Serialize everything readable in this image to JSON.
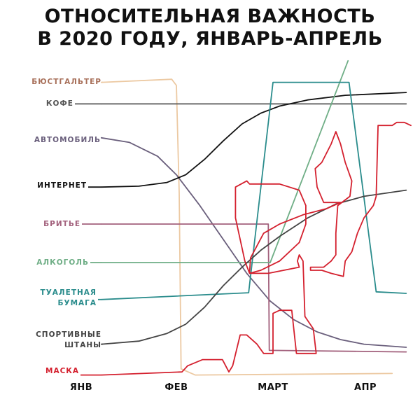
{
  "chart_data": {
    "type": "line",
    "title": "ОТНОСИТЕЛЬНАЯ ВАЖНОСТЬ В 2020 ГОДУ, ЯНВАРЬ-АПРЕЛЬ",
    "title_lines": [
      "ОТНОСИТЕЛЬНАЯ ВАЖНОСТЬ",
      "В 2020 ГОДУ, ЯНВАРЬ-АПРЕЛЬ"
    ],
    "xlabel": "",
    "ylabel": "",
    "x_ticks": [
      {
        "value": 0,
        "label": "ЯНВ"
      },
      {
        "value": 1,
        "label": "ФЕВ"
      },
      {
        "value": 2,
        "label": "МАРТ"
      },
      {
        "value": 3,
        "label": "АПР"
      }
    ],
    "xlim": [
      0,
      3.5
    ],
    "ylim": [
      0,
      103
    ],
    "grid": false,
    "legend": "left-labels",
    "series": [
      {
        "name": "БЮСТГАЛЬТЕР",
        "color": "#ecc9a2",
        "label_color": "#a8705a",
        "points": [
          [
            0.2,
            96
          ],
          [
            0.95,
            97
          ],
          [
            1.0,
            95
          ],
          [
            1.03,
            60
          ],
          [
            1.05,
            3
          ],
          [
            1.2,
            1
          ],
          [
            3.3,
            1.5
          ]
        ]
      },
      {
        "name": "КОФЕ",
        "color": "#555555",
        "label_color": "#555555",
        "points": [
          [
            0.2,
            89
          ],
          [
            3.45,
            89
          ]
        ]
      },
      {
        "name": "АВТОМОБИЛЬ",
        "color": "#6a5f7c",
        "label_color": "#6a5f7c",
        "points": [
          [
            0.2,
            78
          ],
          [
            0.5,
            76.5
          ],
          [
            0.8,
            72
          ],
          [
            1.0,
            66
          ],
          [
            1.25,
            56
          ],
          [
            1.5,
            45
          ],
          [
            1.75,
            34
          ],
          [
            2.0,
            25
          ],
          [
            2.25,
            19
          ],
          [
            2.5,
            15
          ],
          [
            2.75,
            12.5
          ],
          [
            3.0,
            11
          ],
          [
            3.45,
            10
          ]
        ]
      },
      {
        "name": "ИНТЕРНЕТ",
        "color": "#111111",
        "label_color": "#111111",
        "points": [
          [
            0.2,
            62
          ],
          [
            0.6,
            62.3
          ],
          [
            0.9,
            63.5
          ],
          [
            1.1,
            66
          ],
          [
            1.3,
            71
          ],
          [
            1.5,
            77
          ],
          [
            1.7,
            82.5
          ],
          [
            1.9,
            86
          ],
          [
            2.1,
            88.3
          ],
          [
            2.4,
            90.3
          ],
          [
            2.8,
            91.8
          ],
          [
            3.45,
            92.7
          ]
        ]
      },
      {
        "name": "БРИТЬЕ",
        "color": "#a2607c",
        "label_color": "#a2607c",
        "points": [
          [
            0.2,
            50
          ],
          [
            1.98,
            50
          ],
          [
            1.99,
            9
          ],
          [
            3.45,
            8.5
          ]
        ]
      },
      {
        "name": "АЛКОГОЛЬ",
        "color": "#6fae86",
        "label_color": "#6fae86",
        "points": [
          [
            0.2,
            37.5
          ],
          [
            2.0,
            37.5
          ],
          [
            2.83,
            103
          ]
        ]
      },
      {
        "name": "ТУАЛЕТНАЯ БУМАГА",
        "label_lines": [
          "ТУАЛЕТНАЯ",
          "БУМАГА"
        ],
        "color": "#2a8c8c",
        "label_color": "#2a8c8c",
        "points": [
          [
            0.2,
            25.5
          ],
          [
            1.77,
            27.7
          ],
          [
            2.03,
            96
          ],
          [
            2.84,
            96
          ],
          [
            3.13,
            28
          ],
          [
            3.45,
            27.5
          ]
        ]
      },
      {
        "name": "СПОРТИВНЫЕ ШТАНЫ",
        "label_lines": [
          "СПОРТИВНЫЕ",
          "ШТАНЫ"
        ],
        "color": "#444444",
        "label_color": "#444444",
        "points": [
          [
            0.2,
            11
          ],
          [
            0.6,
            12
          ],
          [
            0.9,
            14.5
          ],
          [
            1.1,
            17.5
          ],
          [
            1.3,
            23
          ],
          [
            1.5,
            30
          ],
          [
            1.7,
            36
          ],
          [
            1.9,
            41.5
          ],
          [
            2.1,
            46
          ],
          [
            2.4,
            52
          ],
          [
            2.7,
            56.5
          ],
          [
            3.0,
            59
          ],
          [
            3.45,
            61
          ]
        ]
      },
      {
        "name": "МАСКА",
        "color": "#d4202e",
        "label_color": "#d4202e",
        "points": [
          [
            0.2,
            1
          ],
          [
            1.06,
            2
          ],
          [
            1.12,
            4
          ],
          [
            1.28,
            6
          ],
          [
            1.36,
            6
          ],
          [
            1.49,
            6
          ],
          [
            1.56,
            2
          ],
          [
            1.6,
            4
          ],
          [
            1.68,
            14
          ],
          [
            1.75,
            14
          ],
          [
            1.86,
            11
          ],
          [
            1.93,
            8
          ],
          [
            2.03,
            8
          ],
          [
            2.03,
            21
          ],
          [
            2.1,
            22
          ],
          [
            2.23,
            22
          ],
          [
            2.28,
            8
          ],
          [
            2.49,
            8
          ],
          [
            2.46,
            16
          ],
          [
            2.37,
            20
          ],
          [
            2.35,
            38
          ],
          [
            2.31,
            40
          ],
          [
            2.29,
            38
          ],
          [
            2.31,
            36
          ],
          [
            1.98,
            34
          ],
          [
            1.78,
            34
          ],
          [
            1.73,
            38
          ],
          [
            1.63,
            52
          ],
          [
            1.63,
            62
          ],
          [
            1.75,
            64
          ],
          [
            1.78,
            63
          ],
          [
            2.1,
            63
          ],
          [
            2.31,
            61
          ],
          [
            2.38,
            56
          ],
          [
            2.38,
            50
          ],
          [
            2.31,
            44
          ],
          [
            2.1,
            38
          ],
          [
            1.9,
            35
          ],
          [
            1.78,
            34
          ],
          [
            1.79,
            39
          ],
          [
            1.93,
            47
          ],
          [
            2.1,
            50
          ],
          [
            2.35,
            53
          ],
          [
            2.6,
            55
          ],
          [
            2.75,
            57
          ],
          [
            2.57,
            57
          ],
          [
            2.5,
            62
          ],
          [
            2.48,
            68
          ],
          [
            2.55,
            70
          ],
          [
            2.65,
            76
          ],
          [
            2.7,
            80
          ],
          [
            2.75,
            76
          ],
          [
            2.8,
            70
          ],
          [
            2.87,
            64
          ],
          [
            2.85,
            59
          ],
          [
            2.72,
            56
          ],
          [
            2.7,
            47
          ],
          [
            2.7,
            40
          ],
          [
            2.65,
            38
          ],
          [
            2.57,
            36
          ],
          [
            2.43,
            36
          ],
          [
            2.43,
            35
          ],
          [
            2.55,
            35
          ],
          [
            2.65,
            34
          ],
          [
            2.78,
            33
          ],
          [
            2.8,
            38
          ],
          [
            2.87,
            41
          ],
          [
            2.93,
            47
          ],
          [
            3.0,
            52
          ],
          [
            3.1,
            56
          ],
          [
            3.13,
            59
          ],
          [
            3.15,
            82
          ],
          [
            3.3,
            82
          ],
          [
            3.35,
            83
          ],
          [
            3.43,
            83
          ],
          [
            3.5,
            82
          ]
        ]
      }
    ]
  }
}
